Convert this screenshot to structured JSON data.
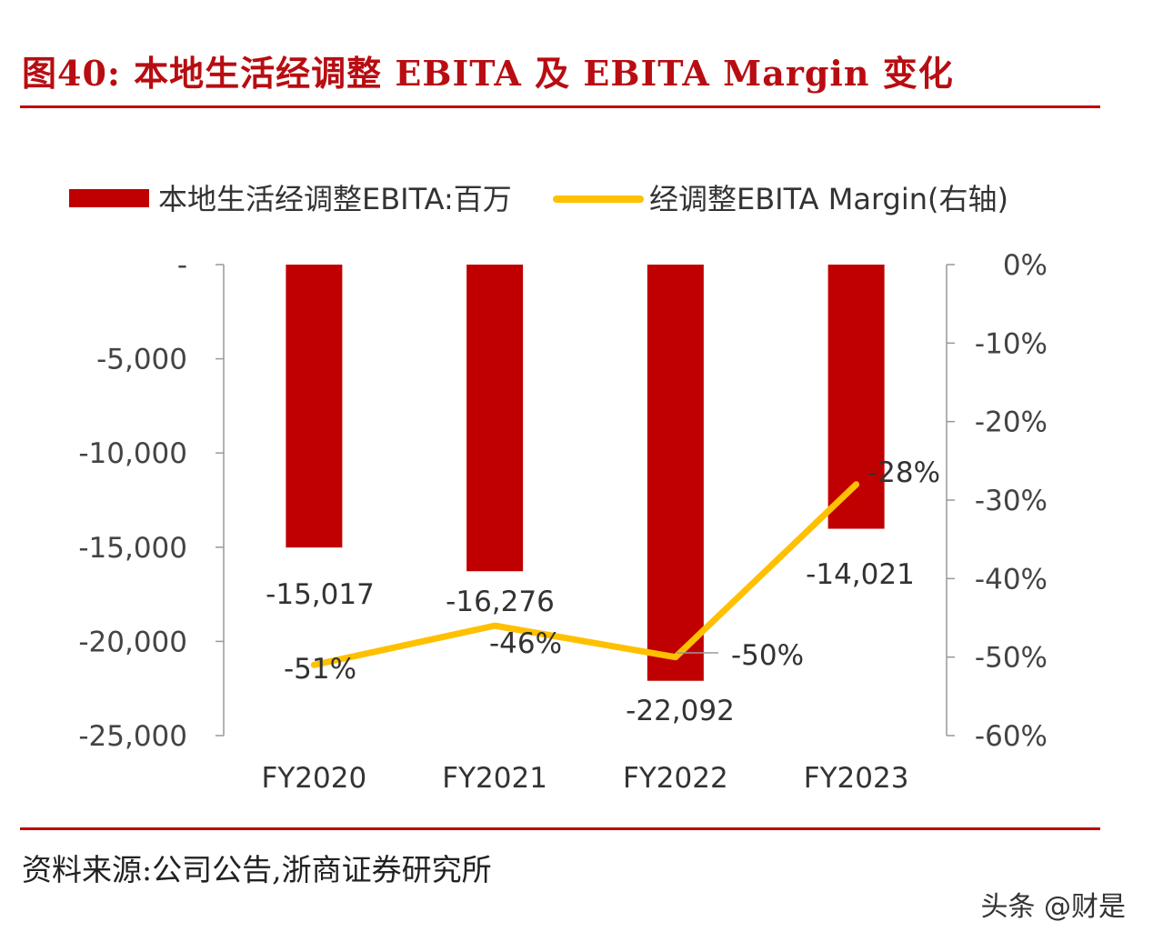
{
  "title": "图40:   本地生活经调整 EBITA 及 EBITA Margin 变化",
  "source": "资料来源:公司公告,浙商证券研究所",
  "watermark": "头条 @财是",
  "chart_data": {
    "type": "bar",
    "categories": [
      "FY2020",
      "FY2021",
      "FY2022",
      "FY2023"
    ],
    "series": [
      {
        "name": "本地生活经调整EBITA:百万",
        "kind": "bar",
        "axis": "left",
        "color": "#c00000",
        "values": [
          -15017,
          -16276,
          -22092,
          -14021
        ],
        "labels": [
          "-15,017",
          "-16,276",
          "-22,092",
          "-14,021"
        ]
      },
      {
        "name": "经调整EBITA Margin(右轴)",
        "kind": "line",
        "axis": "right",
        "color": "#ffc000",
        "values": [
          -0.51,
          -0.46,
          -0.5,
          -0.28
        ],
        "labels": [
          "-51%",
          "-46%",
          "-50%",
          "-28%"
        ]
      }
    ],
    "left_axis": {
      "ylim": [
        -25000,
        0
      ],
      "ticks": [
        0,
        -5000,
        -10000,
        -15000,
        -20000,
        -25000
      ],
      "tick_labels": [
        "-",
        "-5,000",
        "-10,000",
        "-15,000",
        "-20,000",
        "-25,000"
      ]
    },
    "right_axis": {
      "ylim": [
        -0.6,
        0
      ],
      "ticks": [
        0,
        -0.1,
        -0.2,
        -0.3,
        -0.4,
        -0.5,
        -0.6
      ],
      "tick_labels": [
        "0%",
        "-10%",
        "-20%",
        "-30%",
        "-40%",
        "-50%",
        "-60%"
      ]
    },
    "legend_position": "top"
  }
}
